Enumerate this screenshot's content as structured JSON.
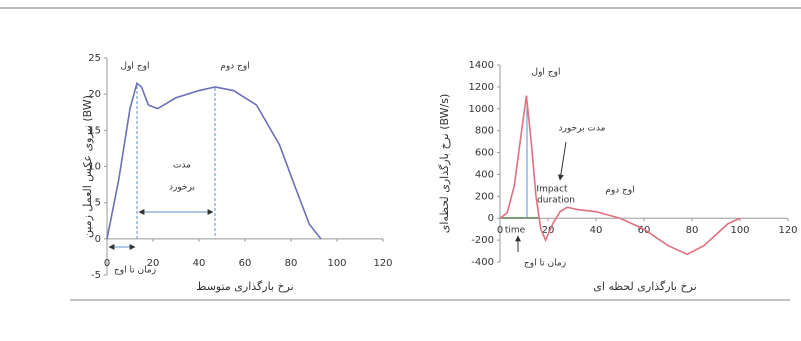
{
  "chart_data": [
    {
      "type": "line",
      "y_label": "نیروی عکس العمل زمین (BW)",
      "x_label": "نرخ بارگذاری متوسط",
      "xlim": [
        0,
        120
      ],
      "ylim": [
        -5,
        25
      ],
      "xticks": [
        0,
        20,
        40,
        60,
        80,
        100,
        120
      ],
      "yticks": [
        -5,
        0,
        5,
        10,
        15,
        20,
        25
      ],
      "series": [
        {
          "color": "#6b70b8",
          "x": [
            0,
            5,
            10,
            13,
            15,
            18,
            22,
            30,
            40,
            47,
            55,
            65,
            75,
            82,
            88,
            93
          ],
          "values": [
            0,
            8,
            18,
            21.5,
            21,
            18.5,
            18,
            19.5,
            20.5,
            21,
            20.5,
            18.5,
            13,
            7,
            2,
            0
          ]
        }
      ],
      "annotations": [
        "اوج اول",
        "اوج دوم",
        "مدت",
        "برخورد",
        "زمان تا اوج"
      ]
    },
    {
      "type": "line",
      "y_label": "نرخ بارگذاری لحظه‌ای (BW/s)",
      "x_label": "نرخ بارگذاری لحظه ای",
      "xlim": [
        0,
        120
      ],
      "ylim": [
        -400,
        1400
      ],
      "xticks": [
        0,
        20,
        40,
        60,
        80,
        100,
        120
      ],
      "yticks": [
        -400,
        -200,
        0,
        200,
        400,
        600,
        800,
        1000,
        1200,
        1400
      ],
      "series": [
        {
          "color": "#e0707e",
          "x": [
            0,
            3,
            6,
            9,
            11,
            13,
            15,
            17,
            19,
            22,
            25,
            28,
            32,
            40,
            50,
            60,
            70,
            78,
            85,
            95,
            100
          ],
          "values": [
            0,
            50,
            300,
            800,
            1120,
            700,
            200,
            -100,
            -200,
            -50,
            60,
            100,
            80,
            60,
            0,
            -100,
            -250,
            -330,
            -250,
            -50,
            0
          ]
        }
      ],
      "annotations": [
        "اوج اول",
        "مدت برخورد",
        "Impact",
        "duration",
        "اوج دوم",
        "time",
        "زمان تا اوج"
      ]
    }
  ]
}
